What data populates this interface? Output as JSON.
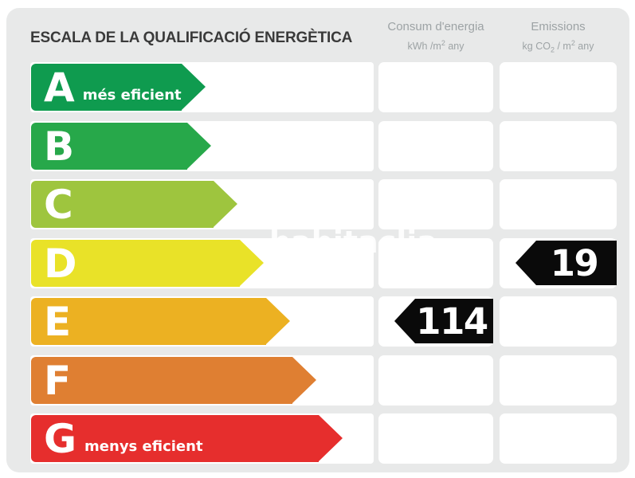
{
  "title": "ESCALA DE LA QUALIFICACIÓ ENERGÈTICA",
  "watermark": "habitaclia",
  "columns": {
    "consum": {
      "title": "Consum d'energia",
      "unit_pre": "kWh /m",
      "unit_sup": "2",
      "unit_post": " any"
    },
    "emissions": {
      "title": "Emissions",
      "unit_pre": "kg CO",
      "unit_sub": "2",
      "unit_mid": " / m",
      "unit_sup": "2",
      "unit_post": " any"
    }
  },
  "colors": {
    "panel_bg": "#e8e9e9",
    "cell_bg": "#ffffff",
    "badge_bg": "#0a0a0a",
    "title_text": "#3a3a3a",
    "header_text": "#9da3a5",
    "rating_a": "#0f9b4f",
    "rating_b": "#27a84a",
    "rating_c": "#9ec53e",
    "rating_d": "#e9e228",
    "rating_e": "#ecb122",
    "rating_f": "#df7f32",
    "rating_g": "#e62e2d"
  },
  "scale": {
    "rows": [
      {
        "letter": "A",
        "label": "més eficient",
        "color": "#0f9b4f"
      },
      {
        "letter": "B",
        "color": "#27a84a"
      },
      {
        "letter": "C",
        "color": "#9ec53e"
      },
      {
        "letter": "D",
        "color": "#e9e228",
        "emissions_value": "19"
      },
      {
        "letter": "E",
        "color": "#ecb122",
        "consum_value": "114"
      },
      {
        "letter": "F",
        "color": "#df7f32"
      },
      {
        "letter": "G",
        "label": "menys eficient",
        "color": "#e62e2d"
      }
    ]
  },
  "chart_data": {
    "type": "bar",
    "title": "ESCALA DE LA QUALIFICACIÓ ENERGÈTICA",
    "categories": [
      "A",
      "B",
      "C",
      "D",
      "E",
      "F",
      "G"
    ],
    "series": [
      {
        "name": "Consum d'energia (kWh/m2 any)",
        "values": [
          null,
          null,
          null,
          null,
          114,
          null,
          null
        ]
      },
      {
        "name": "Emissions (kg CO2/m2 any)",
        "values": [
          null,
          null,
          null,
          19,
          null,
          null,
          null
        ]
      }
    ],
    "annotations": [
      "A = més eficient",
      "G = menys eficient",
      "Consum rating: E = 114",
      "Emissions rating: D = 19"
    ],
    "legend_position": "top",
    "grid": false
  }
}
